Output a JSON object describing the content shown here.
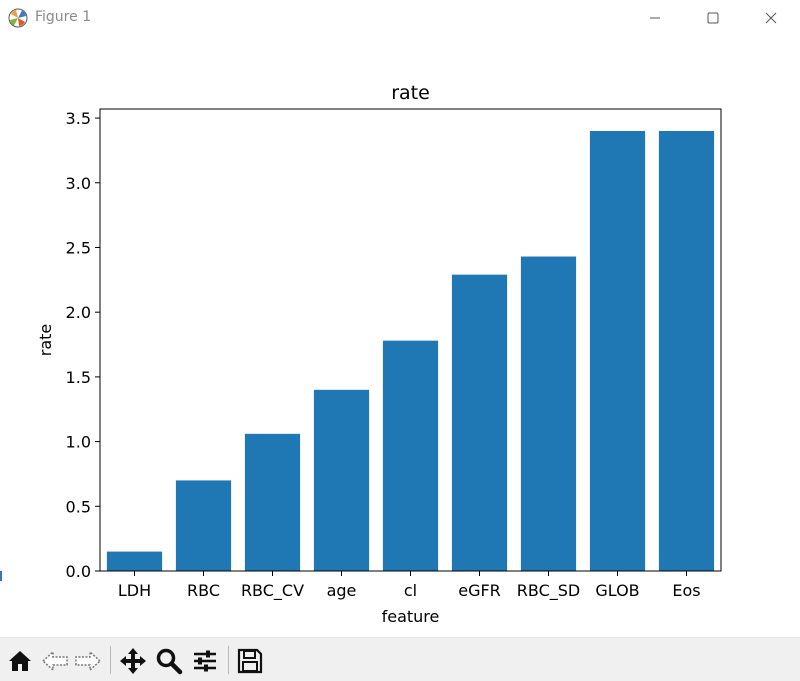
{
  "window": {
    "title": "Figure 1",
    "icon": "matplotlib-icon",
    "controls": [
      "minimize-icon",
      "maximize-icon",
      "close-icon"
    ]
  },
  "toolbar": {
    "buttons": [
      "home-icon",
      "back-icon",
      "forward-icon",
      "pan-icon",
      "zoom-icon",
      "configure-subplots-icon",
      "save-icon"
    ]
  },
  "colors": {
    "bar": "#1f77b4",
    "text": "#000000",
    "toolbar_bg": "#f0f0f0"
  },
  "chart_data": {
    "type": "bar",
    "title": "rate",
    "xlabel": "feature",
    "ylabel": "rate",
    "categories": [
      "LDH",
      "RBC",
      "RBC_CV",
      "age",
      "cl",
      "eGFR",
      "RBC_SD",
      "GLOB",
      "Eos"
    ],
    "values": [
      0.15,
      0.7,
      1.06,
      1.4,
      1.78,
      2.29,
      2.43,
      3.4,
      3.4
    ],
    "ylim": [
      0,
      3.57
    ],
    "yticks": [
      0.0,
      0.5,
      1.0,
      1.5,
      2.0,
      2.5,
      3.0,
      3.5
    ],
    "ytick_labels": [
      "0.0",
      "0.5",
      "1.0",
      "1.5",
      "2.0",
      "2.5",
      "3.0",
      "3.5"
    ],
    "grid": false,
    "legend": "none"
  }
}
